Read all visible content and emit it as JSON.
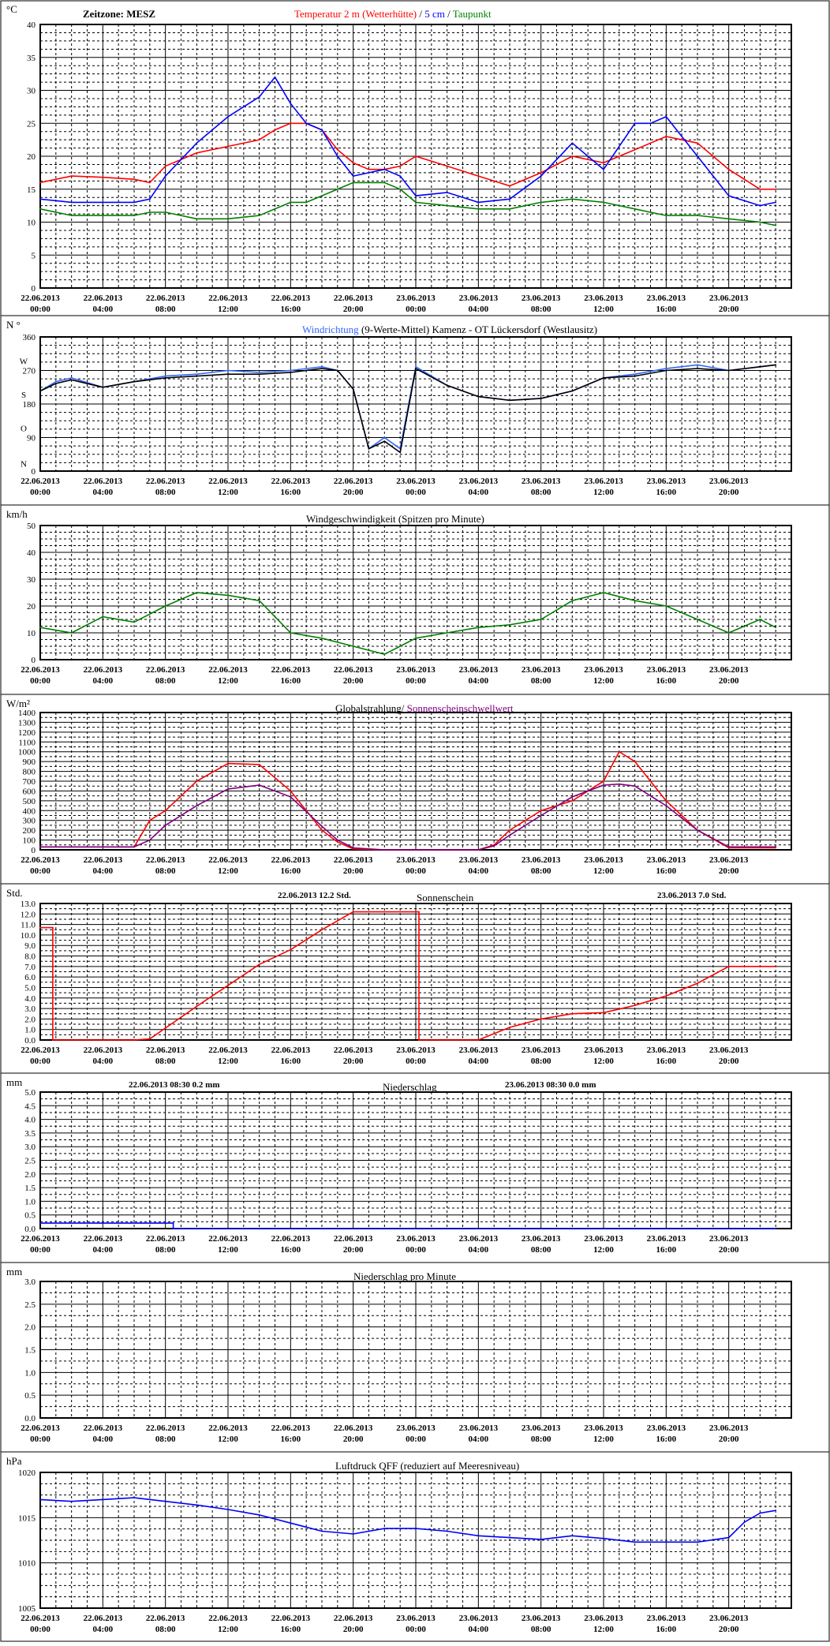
{
  "x_ticks": [
    {
      "date": "22.06.2013",
      "time": "00:00"
    },
    {
      "date": "22.06.2013",
      "time": "04:00"
    },
    {
      "date": "22.06.2013",
      "time": "08:00"
    },
    {
      "date": "22.06.2013",
      "time": "12:00"
    },
    {
      "date": "22.06.2013",
      "time": "16:00"
    },
    {
      "date": "22.06.2013",
      "time": "20:00"
    },
    {
      "date": "23.06.2013",
      "time": "00:00"
    },
    {
      "date": "23.06.2013",
      "time": "04:00"
    },
    {
      "date": "23.06.2013",
      "time": "08:00"
    },
    {
      "date": "23.06.2013",
      "time": "12:00"
    },
    {
      "date": "23.06.2013",
      "time": "16:00"
    },
    {
      "date": "23.06.2013",
      "time": "20:00"
    }
  ],
  "colors": {
    "red": "#ff0000",
    "blue": "#0000ff",
    "green": "#008000",
    "black": "#000000",
    "darkred": "#cc0000",
    "purple": "#800080",
    "lightblue": "#3366ff"
  },
  "chart_data": [
    {
      "id": "temperature",
      "type": "line",
      "unit": "°C",
      "header_left": "Zeitzone: MESZ",
      "title_parts": [
        {
          "text": "Temperatur 2 m (Wetterhütte)",
          "color": "#ff0000"
        },
        {
          "text": "  /  ",
          "color": "#000000"
        },
        {
          "text": "5 cm",
          "color": "#0000ff"
        },
        {
          "text": " / ",
          "color": "#000000"
        },
        {
          "text": "Taupunkt",
          "color": "#008000"
        }
      ],
      "ylim": [
        0,
        40
      ],
      "yticks": [
        0,
        5,
        10,
        15,
        20,
        25,
        30,
        35,
        40
      ],
      "ytick_labels": [
        "0",
        "5",
        "10",
        "15",
        "20",
        "25",
        "30",
        "35",
        "40"
      ],
      "x_hours": [
        0,
        2,
        4,
        6,
        7,
        8,
        10,
        12,
        14,
        15,
        16,
        17,
        18,
        19,
        20,
        21,
        22,
        23,
        24,
        26,
        28,
        30,
        32,
        34,
        36,
        38,
        39,
        40,
        42,
        44,
        46,
        47
      ],
      "series": [
        {
          "name": "Temperatur 2 m (Wetterhütte)",
          "color": "#ff0000",
          "values": [
            16,
            17,
            16.8,
            16.5,
            16,
            18.5,
            20.5,
            21.5,
            22.5,
            24,
            25,
            25,
            24,
            21,
            19,
            18,
            18,
            18.5,
            20,
            18.5,
            17,
            15.5,
            17.5,
            20,
            19,
            21,
            22,
            23,
            22,
            18,
            15,
            15
          ]
        },
        {
          "name": "5 cm",
          "color": "#0000ff",
          "values": [
            13.5,
            13,
            13,
            13,
            13.5,
            17,
            22,
            26,
            29,
            32,
            28,
            25,
            24,
            20,
            17,
            17.5,
            18,
            17,
            14,
            14.5,
            13,
            13.5,
            17,
            22,
            18,
            25,
            25,
            26,
            20,
            14,
            12.5,
            13
          ]
        },
        {
          "name": "Taupunkt",
          "color": "#008000",
          "values": [
            12,
            11,
            11,
            11,
            11.5,
            11.5,
            10.5,
            10.5,
            11,
            12,
            13,
            13,
            14,
            15,
            16,
            16,
            16,
            15,
            13,
            12.5,
            12,
            12,
            13,
            13.5,
            13,
            12,
            11.5,
            11,
            11,
            10.5,
            10,
            9.5
          ]
        }
      ]
    },
    {
      "id": "wind_direction",
      "type": "line",
      "unit": "N °",
      "title_parts": [
        {
          "text": "Windrichtung",
          "color": "#3366ff"
        },
        {
          "text": " (9-Werte-Mittel)",
          "color": "#000000"
        },
        {
          "text": "          Kamenz - OT Lückersdorf (Westlausitz)",
          "color": "#000000"
        }
      ],
      "ylim": [
        0,
        360
      ],
      "yticks": [
        0,
        90,
        180,
        270,
        360
      ],
      "ytick_labels": [
        "0",
        "90",
        "180",
        "270",
        "360"
      ],
      "ytick_letters": [
        "N",
        "O",
        "S",
        "W"
      ],
      "ytick_letter_values": [
        20,
        115,
        205,
        295
      ],
      "x_hours": [
        0,
        1,
        2,
        4,
        6,
        8,
        10,
        12,
        14,
        16,
        18,
        19,
        20,
        21,
        22,
        23,
        24,
        26,
        28,
        30,
        32,
        34,
        36,
        38,
        40,
        42,
        44,
        46,
        47
      ],
      "series": [
        {
          "name": "raw",
          "color": "#3366ff",
          "values": [
            215,
            240,
            250,
            225,
            240,
            255,
            260,
            270,
            265,
            270,
            280,
            270,
            220,
            60,
            90,
            60,
            280,
            230,
            200,
            190,
            195,
            215,
            250,
            260,
            275,
            285,
            270,
            280,
            285
          ]
        },
        {
          "name": "Mittel",
          "color": "#000000",
          "values": [
            215,
            235,
            245,
            225,
            240,
            250,
            255,
            260,
            260,
            265,
            275,
            270,
            220,
            60,
            80,
            50,
            275,
            230,
            200,
            190,
            195,
            215,
            250,
            255,
            270,
            275,
            270,
            280,
            285
          ]
        }
      ]
    },
    {
      "id": "wind_speed",
      "type": "line",
      "unit": "km/h",
      "title_parts": [
        {
          "text": "Windgeschwindigkeit (Spitzen pro Minute)",
          "color": "#000000"
        }
      ],
      "ylim": [
        0,
        50
      ],
      "yticks": [
        0,
        10,
        20,
        30,
        40,
        50
      ],
      "ytick_labels": [
        "0",
        "10",
        "20",
        "30",
        "40",
        "50"
      ],
      "x_hours": [
        0,
        2,
        4,
        6,
        8,
        10,
        12,
        14,
        16,
        18,
        20,
        22,
        24,
        26,
        28,
        30,
        32,
        34,
        36,
        38,
        40,
        42,
        44,
        46,
        47
      ],
      "series": [
        {
          "name": "Windgeschwindigkeit",
          "color": "#008000",
          "values": [
            12,
            10,
            16,
            14,
            20,
            25,
            24,
            22,
            10,
            8,
            5,
            2,
            8,
            10,
            12,
            13,
            15,
            22,
            25,
            22,
            20,
            15,
            10,
            15,
            12
          ]
        }
      ]
    },
    {
      "id": "global_radiation",
      "type": "line",
      "unit": "W/m²",
      "title_parts": [
        {
          "text": "Globalstrahlung/",
          "color": "#000000"
        },
        {
          "text": " Sonnenscheinschwellwert",
          "color": "#800080"
        }
      ],
      "ylim": [
        0,
        1400
      ],
      "yticks": [
        0,
        100,
        200,
        300,
        400,
        500,
        600,
        700,
        800,
        900,
        1000,
        1100,
        1200,
        1300,
        1400
      ],
      "ytick_labels": [
        "0",
        "100",
        "200",
        "300",
        "400",
        "500",
        "600",
        "700",
        "800",
        "900",
        "1000",
        "1100",
        "1200",
        "1300",
        "1400"
      ],
      "x_hours": [
        0,
        4,
        6,
        7,
        8,
        10,
        12,
        14,
        16,
        18,
        19,
        20,
        22,
        24,
        26,
        28,
        29,
        30,
        32,
        34,
        36,
        37,
        38,
        40,
        42,
        44,
        46,
        47
      ],
      "series": [
        {
          "name": "Globalstrahlung",
          "color": "#ff0000",
          "values": [
            30,
            30,
            30,
            300,
            400,
            700,
            880,
            870,
            600,
            200,
            80,
            10,
            0,
            0,
            0,
            0,
            50,
            200,
            400,
            500,
            700,
            1000,
            900,
            500,
            200,
            20,
            20,
            20
          ]
        },
        {
          "name": "Sonnenscheinschwellwert",
          "color": "#800080",
          "values": [
            30,
            30,
            30,
            100,
            250,
            450,
            620,
            660,
            540,
            240,
            100,
            20,
            0,
            0,
            0,
            0,
            40,
            150,
            350,
            540,
            660,
            670,
            650,
            450,
            200,
            30,
            30,
            30
          ]
        }
      ]
    },
    {
      "id": "sunshine",
      "type": "line",
      "unit": "Std.",
      "title_parts": [
        {
          "text": "Sonnenschein",
          "color": "#000000"
        }
      ],
      "annotations": [
        {
          "text": "22.06.2013      12.2      Std."
        },
        {
          "text": "23.06.2013      7.0      Std."
        }
      ],
      "ylim": [
        0,
        13
      ],
      "yticks": [
        0,
        1,
        2,
        3,
        4,
        5,
        6,
        7,
        8,
        9,
        10,
        11,
        12,
        13
      ],
      "ytick_labels": [
        "0.0",
        "1.0",
        "2.0",
        "3.0",
        "4.0",
        "5.0",
        "6.0",
        "7.0",
        "8.0",
        "9.0",
        "10.0",
        "11.0",
        "12.0",
        "13.0"
      ],
      "x_hours": [
        0,
        0.8,
        0.8,
        6,
        7,
        10,
        12,
        14,
        16,
        18,
        20,
        24.2,
        24.2,
        28,
        30,
        32,
        34,
        36,
        38,
        40,
        42,
        44,
        47
      ],
      "series": [
        {
          "name": "Sonnenschein",
          "color": "#ff0000",
          "values": [
            10.7,
            10.7,
            0,
            0,
            0.1,
            3.2,
            5.2,
            7.2,
            8.6,
            10.5,
            12.2,
            12.2,
            0,
            0,
            1.2,
            2.0,
            2.5,
            2.6,
            3.3,
            4.2,
            5.4,
            7.0,
            7.0
          ]
        }
      ]
    },
    {
      "id": "precip",
      "type": "line",
      "unit": "mm",
      "title_parts": [
        {
          "text": "Niederschlag",
          "color": "#000000"
        }
      ],
      "annotations": [
        {
          "text": "22.06.2013 08:30      0.2   mm"
        },
        {
          "text": "23.06.2013 08:30      0.0   mm"
        }
      ],
      "ylim": [
        0,
        5
      ],
      "yticks": [
        0,
        0.5,
        1,
        1.5,
        2,
        2.5,
        3,
        3.5,
        4,
        4.5,
        5
      ],
      "ytick_labels": [
        "0.0",
        "0.5",
        "1.0",
        "1.5",
        "2.0",
        "2.5",
        "3.0",
        "3.5",
        "4.0",
        "4.5",
        "5.0"
      ],
      "x_hours": [
        0,
        8.5,
        8.5,
        47
      ],
      "series": [
        {
          "name": "Niederschlag",
          "color": "#0000ff",
          "values": [
            0.2,
            0.2,
            0,
            0
          ]
        }
      ]
    },
    {
      "id": "precip_min",
      "type": "line",
      "unit": "mm",
      "title_parts": [
        {
          "text": "Niederschlag pro Minute",
          "color": "#000000"
        }
      ],
      "ylim": [
        0,
        3
      ],
      "yticks": [
        0,
        0.5,
        1,
        1.5,
        2,
        2.5,
        3
      ],
      "ytick_labels": [
        "0.0",
        "0.5",
        "1.0",
        "1.5",
        "2.0",
        "2.5",
        "3.0"
      ],
      "x_hours": [],
      "series": []
    },
    {
      "id": "pressure",
      "type": "line",
      "unit": "hPa",
      "title_parts": [
        {
          "text": "Luftdruck QFF (reduziert auf Meeresniveau)",
          "color": "#000000"
        }
      ],
      "ylim": [
        1005,
        1020
      ],
      "yticks": [
        1005,
        1010,
        1015,
        1020
      ],
      "ytick_labels": [
        "1005",
        "1010",
        "1015",
        "1020"
      ],
      "x_hours": [
        0,
        2,
        4,
        6,
        8,
        10,
        12,
        14,
        16,
        18,
        20,
        22,
        24,
        26,
        28,
        30,
        32,
        34,
        36,
        38,
        40,
        42,
        44,
        45,
        46,
        47
      ],
      "series": [
        {
          "name": "Luftdruck QFF",
          "color": "#0000ff",
          "values": [
            1017,
            1016.8,
            1017,
            1017.2,
            1016.8,
            1016.4,
            1015.9,
            1015.3,
            1014.4,
            1013.5,
            1013.2,
            1013.8,
            1013.8,
            1013.5,
            1013,
            1012.8,
            1012.6,
            1013,
            1012.7,
            1012.3,
            1012.3,
            1012.3,
            1012.8,
            1014.5,
            1015.5,
            1015.8
          ]
        }
      ]
    }
  ]
}
